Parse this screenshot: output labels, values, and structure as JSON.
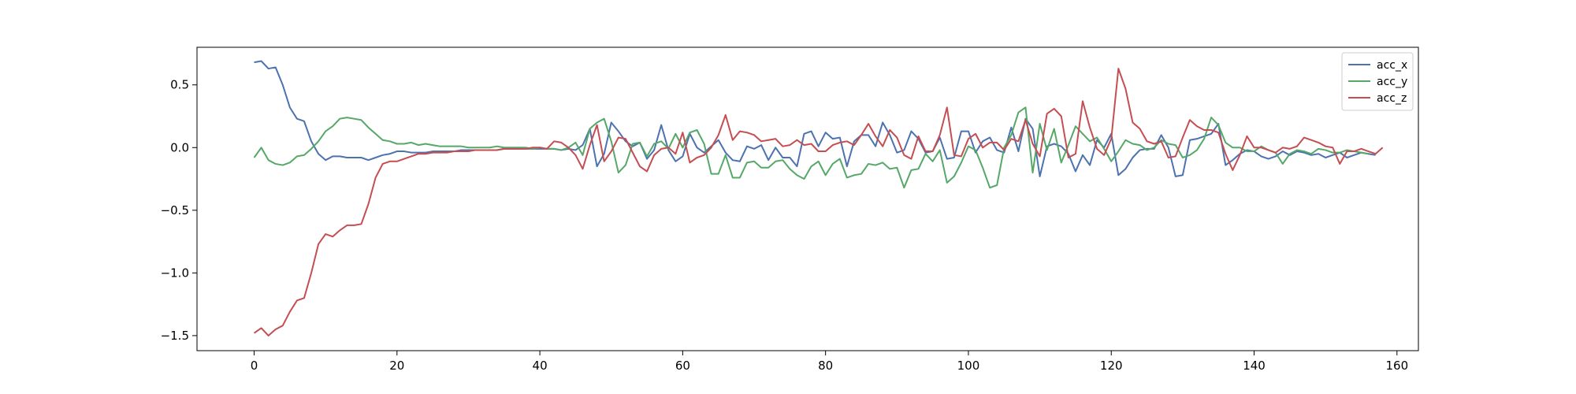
{
  "chart_data": {
    "type": "line",
    "title": "",
    "xlabel": "",
    "ylabel": "",
    "xlim": [
      -8,
      163
    ],
    "ylim": [
      -1.62,
      0.8
    ],
    "xticks": [
      0,
      20,
      40,
      60,
      80,
      100,
      120,
      140,
      160
    ],
    "yticks": [
      -1.5,
      -1.0,
      -0.5,
      0.0,
      0.5
    ],
    "ytick_labels": [
      "−1.5",
      "−1.0",
      "−0.5",
      "0.0",
      "0.5"
    ],
    "grid": false,
    "legend": "top-right",
    "series": [
      {
        "name": "acc_x",
        "color": "#4c72b0",
        "values": [
          0.68,
          0.69,
          0.63,
          0.64,
          0.5,
          0.32,
          0.23,
          0.21,
          0.05,
          -0.05,
          -0.1,
          -0.07,
          -0.07,
          -0.08,
          -0.08,
          -0.08,
          -0.1,
          -0.08,
          -0.06,
          -0.05,
          -0.03,
          -0.03,
          -0.04,
          -0.04,
          -0.04,
          -0.03,
          -0.03,
          -0.03,
          -0.03,
          -0.02,
          -0.02,
          -0.02,
          -0.02,
          -0.02,
          -0.02,
          -0.01,
          -0.01,
          -0.01,
          -0.01,
          -0.01,
          -0.01,
          -0.01,
          -0.01,
          -0.02,
          -0.01,
          -0.02,
          0.02,
          0.15,
          -0.15,
          -0.05,
          0.2,
          0.13,
          0.05,
          0.01,
          0.04,
          -0.09,
          -0.02,
          0.18,
          -0.02,
          -0.11,
          -0.07,
          0.11,
          0.0,
          -0.04,
          0.01,
          0.06,
          -0.04,
          -0.1,
          -0.11,
          0.01,
          -0.01,
          0.02,
          -0.1,
          0.0,
          -0.08,
          -0.08,
          -0.15,
          0.11,
          0.13,
          0.01,
          0.12,
          0.07,
          0.08,
          -0.15,
          0.05,
          0.1,
          0.1,
          0.01,
          0.2,
          0.1,
          -0.04,
          -0.02,
          0.13,
          0.07,
          -0.04,
          -0.03,
          0.08,
          -0.09,
          -0.08,
          0.13,
          0.13,
          -0.04,
          0.05,
          0.08,
          -0.02,
          -0.04,
          0.16,
          -0.03,
          0.23,
          0.15,
          -0.23,
          0.01,
          0.03,
          0.01,
          -0.05,
          -0.19,
          -0.06,
          -0.14,
          0.06,
          0.0,
          0.11,
          -0.22,
          -0.17,
          -0.08,
          -0.02,
          -0.01,
          -0.01,
          0.1,
          0.0,
          -0.23,
          -0.22,
          0.06,
          0.07,
          0.09,
          0.11,
          0.19,
          -0.14,
          -0.1,
          -0.05,
          -0.02,
          -0.03,
          -0.07,
          -0.09,
          -0.07,
          -0.03,
          -0.06,
          -0.03,
          -0.04,
          -0.06,
          -0.05,
          -0.08,
          -0.06,
          -0.04,
          -0.08,
          -0.06,
          -0.04,
          -0.05,
          -0.06
        ]
      },
      {
        "name": "acc_y",
        "color": "#55a868",
        "values": [
          -0.08,
          0.0,
          -0.1,
          -0.13,
          -0.14,
          -0.12,
          -0.07,
          -0.06,
          -0.01,
          0.05,
          0.13,
          0.17,
          0.23,
          0.24,
          0.23,
          0.22,
          0.16,
          0.11,
          0.06,
          0.05,
          0.03,
          0.03,
          0.04,
          0.02,
          0.03,
          0.02,
          0.01,
          0.01,
          0.01,
          0.01,
          0.0,
          0.0,
          0.0,
          0.0,
          0.01,
          0.0,
          0.0,
          0.0,
          0.0,
          -0.01,
          0.0,
          -0.01,
          -0.01,
          -0.02,
          0.0,
          0.04,
          -0.06,
          0.15,
          0.2,
          0.23,
          0.05,
          -0.2,
          -0.14,
          0.03,
          0.04,
          -0.07,
          0.03,
          0.05,
          -0.01,
          0.11,
          0.0,
          0.12,
          0.14,
          0.03,
          -0.21,
          -0.21,
          -0.06,
          -0.24,
          -0.24,
          -0.12,
          -0.11,
          -0.16,
          -0.16,
          -0.11,
          -0.1,
          -0.17,
          -0.22,
          -0.25,
          -0.15,
          -0.11,
          -0.22,
          -0.13,
          -0.09,
          -0.24,
          -0.22,
          -0.21,
          -0.13,
          -0.14,
          -0.12,
          -0.17,
          -0.16,
          -0.32,
          -0.18,
          -0.17,
          -0.05,
          -0.11,
          -0.02,
          -0.28,
          -0.23,
          -0.12,
          0.01,
          -0.02,
          -0.16,
          -0.32,
          -0.3,
          0.0,
          0.1,
          0.28,
          0.32,
          -0.2,
          0.19,
          -0.02,
          0.15,
          -0.12,
          0.02,
          0.17,
          0.11,
          0.05,
          0.08,
          -0.01,
          -0.11,
          -0.03,
          0.06,
          0.03,
          0.02,
          -0.02,
          0.0,
          0.06,
          0.03,
          0.02,
          -0.08,
          -0.06,
          -0.02,
          0.07,
          0.24,
          0.18,
          0.04,
          0.0,
          0.0,
          -0.03,
          -0.03,
          0.01,
          -0.02,
          -0.04,
          -0.13,
          -0.05,
          -0.02,
          -0.03,
          -0.05,
          -0.01,
          -0.02,
          -0.04,
          -0.04,
          -0.02,
          -0.03,
          -0.04,
          -0.05
        ]
      },
      {
        "name": "acc_z",
        "color": "#c44e52",
        "values": [
          -1.48,
          -1.44,
          -1.5,
          -1.45,
          -1.42,
          -1.31,
          -1.22,
          -1.2,
          -1.0,
          -0.77,
          -0.69,
          -0.71,
          -0.66,
          -0.62,
          -0.62,
          -0.61,
          -0.45,
          -0.24,
          -0.13,
          -0.11,
          -0.11,
          -0.09,
          -0.07,
          -0.05,
          -0.05,
          -0.04,
          -0.04,
          -0.04,
          -0.03,
          -0.03,
          -0.03,
          -0.02,
          -0.02,
          -0.02,
          -0.02,
          -0.01,
          -0.01,
          -0.01,
          -0.01,
          0.0,
          0.0,
          -0.01,
          0.05,
          0.04,
          0.0,
          -0.06,
          -0.17,
          0.02,
          0.18,
          -0.11,
          -0.03,
          0.08,
          0.07,
          -0.04,
          -0.15,
          -0.19,
          -0.06,
          -0.01,
          0.0,
          -0.05,
          0.12,
          -0.12,
          -0.08,
          -0.06,
          0.0,
          0.1,
          0.26,
          0.06,
          0.13,
          0.12,
          0.1,
          0.05,
          0.06,
          0.07,
          0.01,
          0.02,
          0.06,
          0.02,
          0.03,
          -0.03,
          -0.03,
          0.02,
          0.04,
          0.05,
          0.02,
          0.1,
          0.19,
          0.09,
          0.01,
          0.14,
          0.08,
          -0.06,
          -0.09,
          0.09,
          -0.03,
          -0.03,
          0.1,
          0.32,
          -0.06,
          -0.07,
          0.07,
          0.11,
          0.0,
          0.04,
          0.04,
          -0.02,
          0.07,
          0.05,
          0.22,
          0.03,
          -0.07,
          0.27,
          0.31,
          0.25,
          -0.08,
          -0.05,
          0.37,
          0.16,
          -0.01,
          -0.06,
          0.07,
          0.63,
          0.47,
          0.2,
          0.15,
          0.05,
          0.03,
          0.05,
          -0.08,
          -0.07,
          0.08,
          0.22,
          0.17,
          0.14,
          0.14,
          0.12,
          -0.05,
          -0.18,
          -0.06,
          0.09,
          0.0,
          0.0,
          -0.02,
          -0.04,
          0.0,
          -0.01,
          0.01,
          0.08,
          0.06,
          0.04,
          0.01,
          0.0,
          -0.13,
          -0.03,
          -0.03,
          -0.01,
          -0.03,
          -0.05,
          0.0
        ]
      }
    ]
  }
}
